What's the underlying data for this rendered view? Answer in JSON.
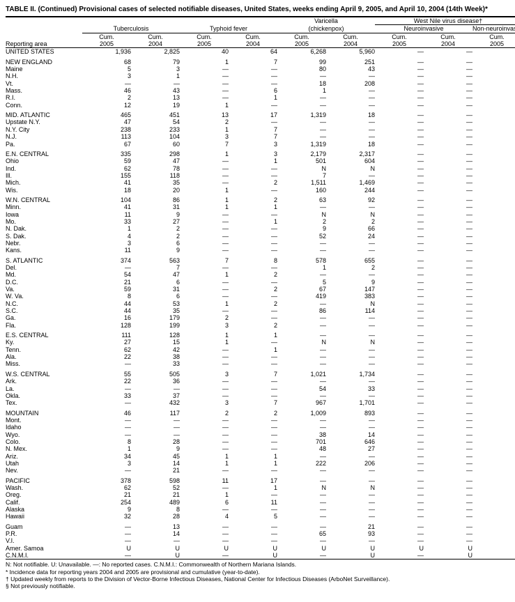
{
  "title": "TABLE II. (Continued) Provisional cases of selected notifiable diseases, United States, weeks ending April 9, 2005, and April 10, 2004 (14th Week)*",
  "columns": {
    "area": "Reporting area",
    "groups": [
      {
        "label": "Tuberculosis",
        "span": 2,
        "subs": [
          "Cum. 2005",
          "Cum. 2004"
        ]
      },
      {
        "label": "Typhoid fever",
        "span": 2,
        "subs": [
          "Cum. 2005",
          "Cum. 2004"
        ]
      },
      {
        "label": "Varicella (chickenpox)",
        "top": "Varicella",
        "mid": "(chickenpox)",
        "span": 2,
        "subs": [
          "Cum. 2005",
          "Cum. 2004"
        ]
      },
      {
        "label": "West Nile virus disease†",
        "span": 3,
        "sub_groups": [
          {
            "label": "Neuroinvasive",
            "span": 2,
            "subs": [
              "Cum. 2005",
              "Cum. 2004"
            ]
          },
          {
            "label": "Non-neuroinvasive§",
            "span": 1,
            "subs": [
              "Cum. 2005"
            ]
          }
        ]
      }
    ]
  },
  "blocks": [
    [
      [
        "UNITED STATES",
        "1,936",
        "2,825",
        "40",
        "64",
        "6,268",
        "5,960",
        "—",
        "—",
        "—"
      ]
    ],
    [
      [
        "NEW ENGLAND",
        "68",
        "79",
        "1",
        "7",
        "99",
        "251",
        "—",
        "—",
        "—"
      ],
      [
        "Maine",
        "5",
        "3",
        "—",
        "—",
        "80",
        "43",
        "—",
        "—",
        "—"
      ],
      [
        "N.H.",
        "3",
        "1",
        "—",
        "—",
        "—",
        "—",
        "—",
        "—",
        "—"
      ],
      [
        "Vt.",
        "—",
        "—",
        "—",
        "—",
        "18",
        "208",
        "—",
        "—",
        "—"
      ],
      [
        "Mass.",
        "46",
        "43",
        "—",
        "6",
        "1",
        "—",
        "—",
        "—",
        "—"
      ],
      [
        "R.I.",
        "2",
        "13",
        "—",
        "1",
        "—",
        "—",
        "—",
        "—",
        "—"
      ],
      [
        "Conn.",
        "12",
        "19",
        "1",
        "—",
        "—",
        "—",
        "—",
        "—",
        "—"
      ]
    ],
    [
      [
        "MID. ATLANTIC",
        "465",
        "451",
        "13",
        "17",
        "1,319",
        "18",
        "—",
        "—",
        "—"
      ],
      [
        "Upstate N.Y.",
        "47",
        "54",
        "2",
        "—",
        "—",
        "—",
        "—",
        "—",
        "—"
      ],
      [
        "N.Y. City",
        "238",
        "233",
        "1",
        "7",
        "—",
        "—",
        "—",
        "—",
        "—"
      ],
      [
        "N.J.",
        "113",
        "104",
        "3",
        "7",
        "—",
        "—",
        "—",
        "—",
        "—"
      ],
      [
        "Pa.",
        "67",
        "60",
        "7",
        "3",
        "1,319",
        "18",
        "—",
        "—",
        "—"
      ]
    ],
    [
      [
        "E.N. CENTRAL",
        "335",
        "298",
        "1",
        "3",
        "2,179",
        "2,317",
        "—",
        "—",
        "—"
      ],
      [
        "Ohio",
        "59",
        "47",
        "—",
        "1",
        "501",
        "604",
        "—",
        "—",
        "—"
      ],
      [
        "Ind.",
        "62",
        "78",
        "—",
        "—",
        "N",
        "N",
        "—",
        "—",
        "—"
      ],
      [
        "Ill.",
        "155",
        "118",
        "—",
        "—",
        "7",
        "—",
        "—",
        "—",
        "—"
      ],
      [
        "Mich.",
        "41",
        "35",
        "—",
        "2",
        "1,511",
        "1,469",
        "—",
        "—",
        "—"
      ],
      [
        "Wis.",
        "18",
        "20",
        "1",
        "—",
        "160",
        "244",
        "—",
        "—",
        "—"
      ]
    ],
    [
      [
        "W.N. CENTRAL",
        "104",
        "86",
        "1",
        "2",
        "63",
        "92",
        "—",
        "—",
        "—"
      ],
      [
        "Minn.",
        "41",
        "31",
        "1",
        "1",
        "—",
        "—",
        "—",
        "—",
        "—"
      ],
      [
        "Iowa",
        "11",
        "9",
        "—",
        "—",
        "N",
        "N",
        "—",
        "—",
        "—"
      ],
      [
        "Mo.",
        "33",
        "27",
        "—",
        "1",
        "2",
        "2",
        "—",
        "—",
        "—"
      ],
      [
        "N. Dak.",
        "1",
        "2",
        "—",
        "—",
        "9",
        "66",
        "—",
        "—",
        "—"
      ],
      [
        "S. Dak.",
        "4",
        "2",
        "—",
        "—",
        "52",
        "24",
        "—",
        "—",
        "—"
      ],
      [
        "Nebr.",
        "3",
        "6",
        "—",
        "—",
        "—",
        "—",
        "—",
        "—",
        "—"
      ],
      [
        "Kans.",
        "11",
        "9",
        "—",
        "—",
        "—",
        "—",
        "—",
        "—",
        "N"
      ]
    ],
    [
      [
        "S. ATLANTIC",
        "374",
        "563",
        "7",
        "8",
        "578",
        "655",
        "—",
        "—",
        "—"
      ],
      [
        "Del.",
        "—",
        "7",
        "—",
        "—",
        "1",
        "2",
        "—",
        "—",
        "—"
      ],
      [
        "Md.",
        "54",
        "47",
        "1",
        "2",
        "—",
        "—",
        "—",
        "—",
        "—"
      ],
      [
        "D.C.",
        "21",
        "6",
        "—",
        "—",
        "5",
        "9",
        "—",
        "—",
        "—"
      ],
      [
        "Va.",
        "59",
        "31",
        "—",
        "2",
        "67",
        "147",
        "—",
        "—",
        "—"
      ],
      [
        "W. Va.",
        "8",
        "6",
        "—",
        "—",
        "419",
        "383",
        "—",
        "—",
        "N"
      ],
      [
        "N.C.",
        "44",
        "53",
        "1",
        "2",
        "—",
        "N",
        "—",
        "—",
        "—"
      ],
      [
        "S.C.",
        "44",
        "35",
        "—",
        "—",
        "86",
        "114",
        "—",
        "—",
        "—"
      ],
      [
        "Ga.",
        "16",
        "179",
        "2",
        "—",
        "—",
        "—",
        "—",
        "—",
        "—"
      ],
      [
        "Fla.",
        "128",
        "199",
        "3",
        "2",
        "—",
        "—",
        "—",
        "—",
        "—"
      ]
    ],
    [
      [
        "E.S. CENTRAL",
        "111",
        "128",
        "1",
        "1",
        "—",
        "—",
        "—",
        "—",
        "—"
      ],
      [
        "Ky.",
        "27",
        "15",
        "1",
        "—",
        "N",
        "N",
        "—",
        "—",
        "—"
      ],
      [
        "Tenn.",
        "62",
        "42",
        "—",
        "1",
        "—",
        "—",
        "—",
        "—",
        "—"
      ],
      [
        "Ala.",
        "22",
        "38",
        "—",
        "—",
        "—",
        "—",
        "—",
        "—",
        "—"
      ],
      [
        "Miss.",
        "—",
        "33",
        "—",
        "—",
        "—",
        "—",
        "—",
        "—",
        "—"
      ]
    ],
    [
      [
        "W.S. CENTRAL",
        "55",
        "505",
        "3",
        "7",
        "1,021",
        "1,734",
        "—",
        "—",
        "—"
      ],
      [
        "Ark.",
        "22",
        "36",
        "—",
        "—",
        "—",
        "—",
        "—",
        "—",
        "—"
      ],
      [
        "La.",
        "—",
        "—",
        "—",
        "—",
        "54",
        "33",
        "—",
        "—",
        "—"
      ],
      [
        "Okla.",
        "33",
        "37",
        "—",
        "—",
        "—",
        "—",
        "—",
        "—",
        "—"
      ],
      [
        "Tex.",
        "—",
        "432",
        "3",
        "7",
        "967",
        "1,701",
        "—",
        "—",
        "—"
      ]
    ],
    [
      [
        "MOUNTAIN",
        "46",
        "117",
        "2",
        "2",
        "1,009",
        "893",
        "—",
        "—",
        "—"
      ],
      [
        "Mont.",
        "—",
        "—",
        "—",
        "—",
        "—",
        "—",
        "—",
        "—",
        "—"
      ],
      [
        "Idaho",
        "—",
        "—",
        "—",
        "—",
        "—",
        "—",
        "—",
        "—",
        "—"
      ],
      [
        "Wyo.",
        "—",
        "—",
        "—",
        "—",
        "38",
        "14",
        "—",
        "—",
        "—"
      ],
      [
        "Colo.",
        "8",
        "28",
        "—",
        "—",
        "701",
        "646",
        "—",
        "—",
        "—"
      ],
      [
        "N. Mex.",
        "1",
        "9",
        "—",
        "—",
        "48",
        "27",
        "—",
        "—",
        "—"
      ],
      [
        "Ariz.",
        "34",
        "45",
        "1",
        "1",
        "—",
        "—",
        "—",
        "—",
        "—"
      ],
      [
        "Utah",
        "3",
        "14",
        "1",
        "1",
        "222",
        "206",
        "—",
        "—",
        "—"
      ],
      [
        "Nev.",
        "—",
        "21",
        "—",
        "—",
        "—",
        "—",
        "—",
        "—",
        "—"
      ]
    ],
    [
      [
        "PACIFIC",
        "378",
        "598",
        "11",
        "17",
        "—",
        "—",
        "—",
        "—",
        "—"
      ],
      [
        "Wash.",
        "62",
        "52",
        "—",
        "1",
        "N",
        "N",
        "—",
        "—",
        "—"
      ],
      [
        "Oreg.",
        "21",
        "21",
        "1",
        "—",
        "—",
        "—",
        "—",
        "—",
        "—"
      ],
      [
        "Calif.",
        "254",
        "489",
        "6",
        "11",
        "—",
        "—",
        "—",
        "—",
        "—"
      ],
      [
        "Alaska",
        "9",
        "8",
        "—",
        "—",
        "—",
        "—",
        "—",
        "—",
        "—"
      ],
      [
        "Hawaii",
        "32",
        "28",
        "4",
        "5",
        "—",
        "—",
        "—",
        "—",
        "—"
      ]
    ],
    [
      [
        "Guam",
        "—",
        "13",
        "—",
        "—",
        "—",
        "21",
        "—",
        "—",
        "—"
      ],
      [
        "P.R.",
        "—",
        "14",
        "—",
        "—",
        "65",
        "93",
        "—",
        "—",
        "—"
      ],
      [
        "V.I.",
        "—",
        "—",
        "—",
        "—",
        "—",
        "—",
        "—",
        "—",
        "—"
      ],
      [
        "Amer. Samoa",
        "U",
        "U",
        "U",
        "U",
        "U",
        "U",
        "U",
        "U",
        "—"
      ],
      [
        "C.N.M.I.",
        "—",
        "U",
        "—",
        "U",
        "—",
        "U",
        "—",
        "U",
        "—"
      ]
    ]
  ],
  "footnotes": [
    "N: Not notifiable.        U: Unavailable.            —: No reported cases.                    C.N.M.I.: Commonwealth of Northern Mariana Islands.",
    "* Incidence data for reporting years 2004 and 2005 are provisional and cumulative (year-to-date).",
    "† Updated weekly from reports to the Division of Vector-Borne Infectious Diseases, National Center for Infectious Diseases (ArboNet Surveillance).",
    "§ Not previously notifiable."
  ]
}
